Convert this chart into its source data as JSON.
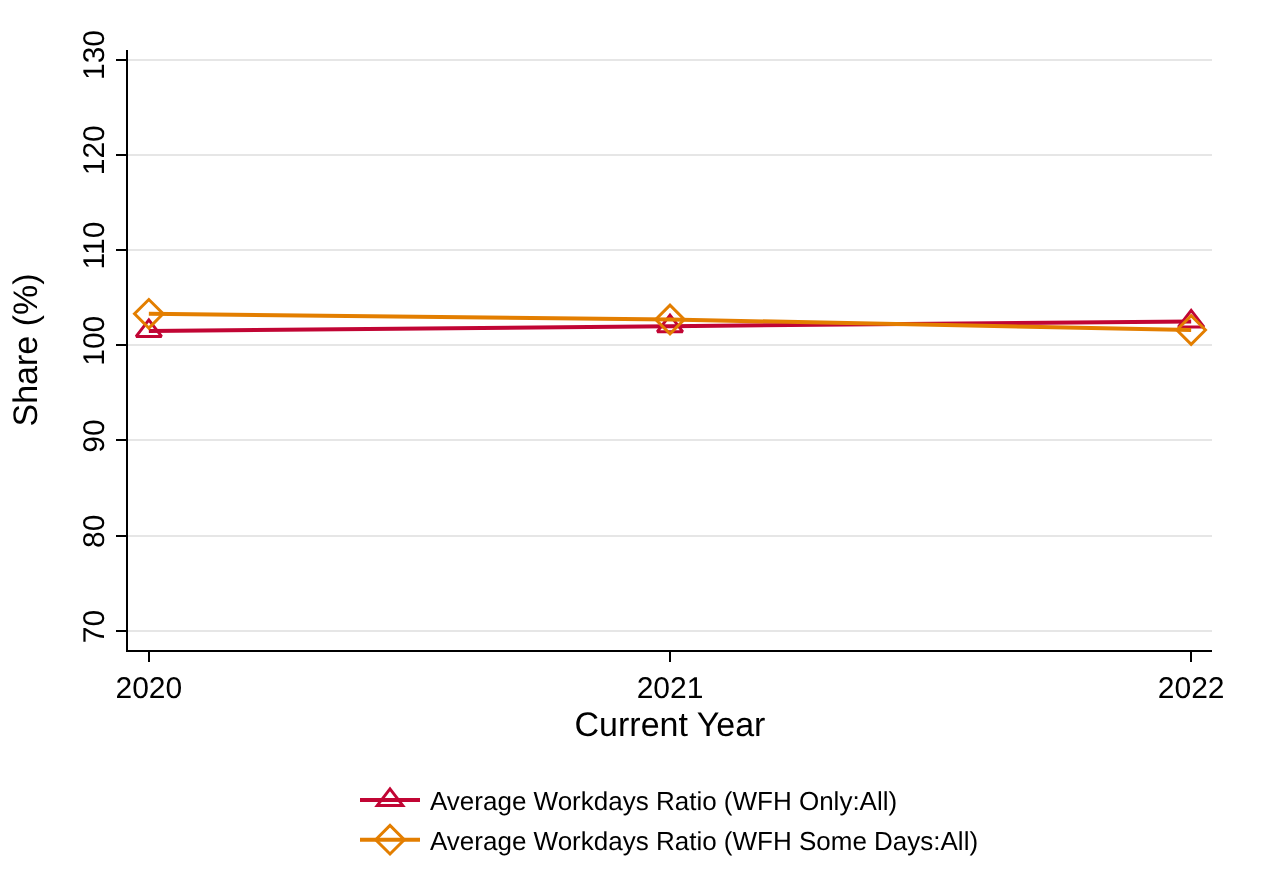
{
  "chart_data": {
    "type": "line",
    "xlabel": "Current Year",
    "ylabel": "Share (%)",
    "x": [
      2020,
      2021,
      2022
    ],
    "series": [
      {
        "name": "Average Workdays Ratio (WFH Only:All)",
        "color": "#c10534",
        "marker": "triangle",
        "values": [
          101.5,
          102.0,
          102.5
        ]
      },
      {
        "name": "Average Workdays Ratio (WFH Some Days:All)",
        "color": "#e37e00",
        "marker": "diamond",
        "values": [
          103.3,
          102.7,
          101.6
        ]
      }
    ],
    "xlim": [
      2019.96,
      2022.04
    ],
    "xticks": [
      2020,
      2021,
      2022
    ],
    "ylim": [
      68,
      131
    ],
    "yticks": [
      70,
      80,
      90,
      100,
      110,
      120,
      130
    ],
    "grid": "y",
    "legend": "bottom"
  }
}
